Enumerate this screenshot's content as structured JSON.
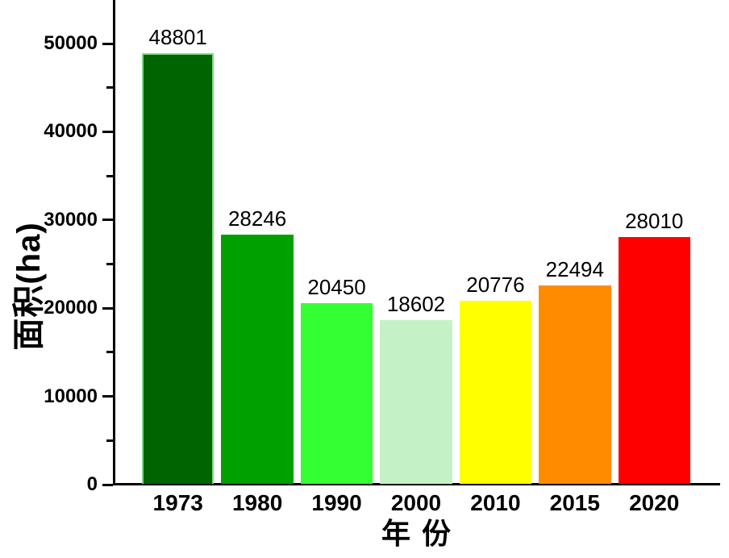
{
  "figure": {
    "background": "#ffffff",
    "axis_color": "#000000",
    "text_color": "#000000"
  },
  "chart_data": {
    "type": "bar",
    "categories": [
      "1973",
      "1980",
      "1990",
      "2000",
      "2010",
      "2015",
      "2020"
    ],
    "values": [
      48801,
      28246,
      20450,
      18602,
      20776,
      22494,
      28010
    ],
    "value_labels": [
      "48801",
      "28246",
      "20450",
      "18602",
      "20776",
      "22494",
      "28010"
    ],
    "bar_colors": [
      "#006400",
      "#00a000",
      "#33ff33",
      "#c4f2c6",
      "#ffff00",
      "#ff8c00",
      "#fe0000"
    ],
    "bar_border_colors": [
      "#7ed87e",
      null,
      null,
      null,
      null,
      null,
      null
    ],
    "title": "",
    "xlabel": "年 份",
    "ylabel": "面积(ha)",
    "ylim": [
      0,
      55000
    ],
    "y_major_ticks": [
      0,
      10000,
      20000,
      30000,
      40000,
      50000
    ],
    "y_minor_ticks": [
      5000,
      15000,
      25000,
      35000,
      45000
    ],
    "grid": false,
    "legend": "none",
    "value_labels_shown": true
  }
}
